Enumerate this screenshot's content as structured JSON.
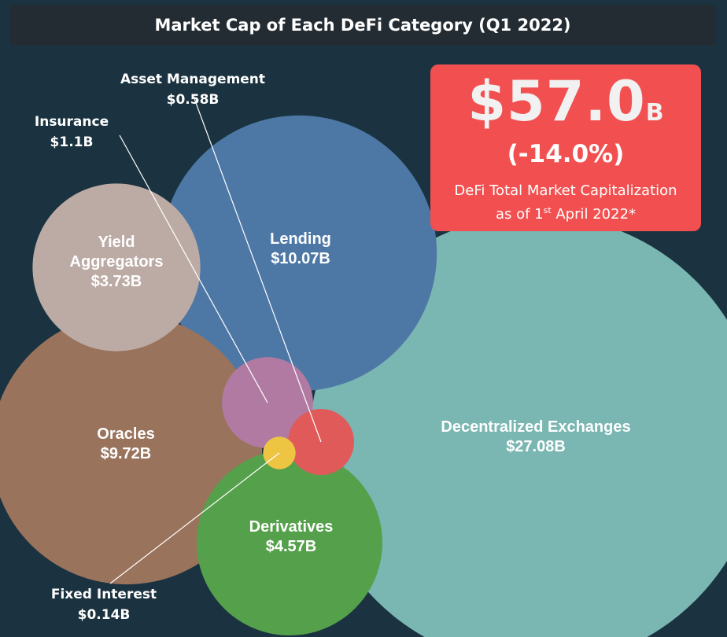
{
  "title": "Market Cap of Each DeFi Category (Q1 2022)",
  "summary": {
    "total_value": "$57.0",
    "total_unit": "B",
    "change": "(-14.0%)",
    "description_line1": "DeFi Total Market Capitalization",
    "description_line2_pre": "as of 1",
    "description_line2_sup": "st",
    "description_line2_post": " April 2022*"
  },
  "colors": {
    "background": "#1b3340",
    "title_bar": "#232c33",
    "summary_box": "#f25050"
  },
  "chart_data": {
    "type": "bubble",
    "unit": "$B",
    "categories": [
      {
        "name": "Decentralized Exchanges",
        "value": 27.08,
        "label": "$27.08B",
        "color": "#7ab6b2"
      },
      {
        "name": "Lending",
        "value": 10.07,
        "label": "$10.07B",
        "color": "#4d78a6"
      },
      {
        "name": "Oracles",
        "value": 9.72,
        "label": "$9.72B",
        "color": "#9a735c"
      },
      {
        "name": "Derivatives",
        "value": 4.57,
        "label": "$4.57B",
        "color": "#55a04b"
      },
      {
        "name": "Yield Aggregators",
        "value": 3.73,
        "label": "$3.73B",
        "color": "#bcaba5"
      },
      {
        "name": "Insurance",
        "value": 1.1,
        "label": "$1.1B",
        "color": "#b17aa2"
      },
      {
        "name": "Asset Management",
        "value": 0.58,
        "label": "$0.58B",
        "color": "#e15a5a"
      },
      {
        "name": "Fixed Interest",
        "value": 0.14,
        "label": "$0.14B",
        "color": "#eec443"
      }
    ]
  }
}
